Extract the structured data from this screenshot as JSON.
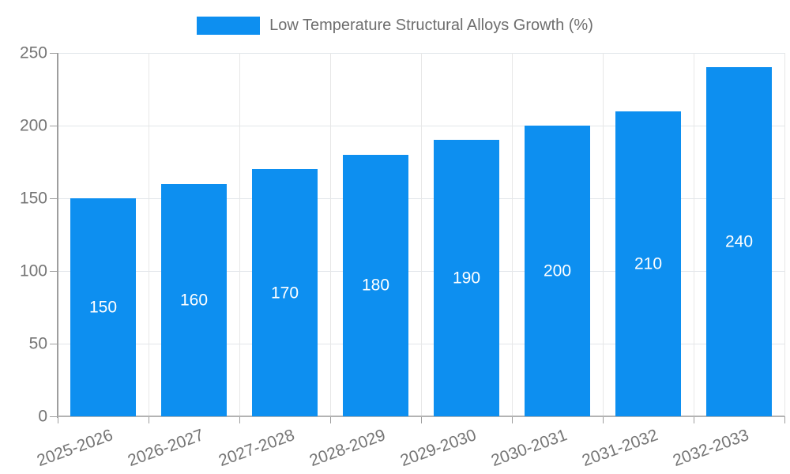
{
  "chart_data": {
    "type": "bar",
    "title": "Low Temperature Structural Alloys Growth (%)",
    "categories": [
      "2025-2026",
      "2026-2027",
      "2027-2028",
      "2028-2029",
      "2029-2030",
      "2030-2031",
      "2031-2032",
      "2032-2033"
    ],
    "values": [
      150,
      160,
      170,
      180,
      190,
      200,
      210,
      240
    ],
    "value_labels": [
      "150",
      "160",
      "170",
      "180",
      "190",
      "200",
      "210",
      "240"
    ],
    "xlabel": "",
    "ylabel": "",
    "ylim": [
      0,
      250
    ],
    "yticks": [
      0,
      50,
      100,
      150,
      200,
      250
    ],
    "ytick_labels": [
      "0",
      "50",
      "100",
      "150",
      "200",
      "250"
    ],
    "grid": true,
    "legend_position": "top-center",
    "x_label_rotation_deg": -20
  },
  "legend": {
    "label": "Low Temperature Structural Alloys Growth (%)",
    "swatch_color": "#0d8ff0"
  },
  "colors": {
    "bar": "#0d8ff0",
    "bar_value_text": "#ffffff",
    "axis": "#9e9e9e",
    "grid_h": "#e2e6ea",
    "grid_v": "#e7e7e7",
    "tick_label": "#757575",
    "legend_text": "#6e6e6e",
    "background": "#ffffff"
  }
}
